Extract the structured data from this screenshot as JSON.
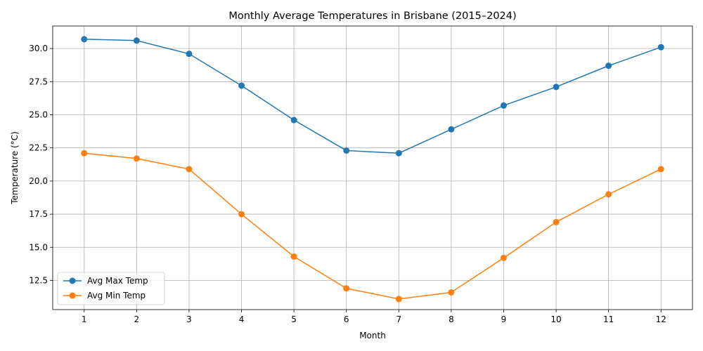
{
  "chart_data": {
    "type": "line",
    "title": "Monthly Average Temperatures in Brisbane (2015–2024)",
    "xlabel": "Month",
    "ylabel": "Temperature (°C)",
    "x": [
      1,
      2,
      3,
      4,
      5,
      6,
      7,
      8,
      9,
      10,
      11,
      12
    ],
    "xlim": [
      0.4,
      12.6
    ],
    "ylim": [
      10.3,
      31.7
    ],
    "yticks": [
      12.5,
      15.0,
      17.5,
      20.0,
      22.5,
      25.0,
      27.5,
      30.0
    ],
    "ytick_labels": [
      "12.5",
      "15.0",
      "17.5",
      "20.0",
      "22.5",
      "25.0",
      "27.5",
      "30.0"
    ],
    "xtick_labels": [
      "1",
      "2",
      "3",
      "4",
      "5",
      "6",
      "7",
      "8",
      "9",
      "10",
      "11",
      "12"
    ],
    "grid": true,
    "legend_position": "lower-left",
    "series": [
      {
        "name": "Avg Max Temp",
        "color": "#1f77b4",
        "values": [
          30.7,
          30.6,
          29.6,
          27.2,
          24.6,
          22.3,
          22.1,
          23.9,
          25.7,
          27.1,
          28.7,
          30.1
        ]
      },
      {
        "name": "Avg Min Temp",
        "color": "#ff7f0e",
        "values": [
          22.1,
          21.7,
          20.9,
          17.5,
          14.3,
          11.9,
          11.1,
          11.6,
          14.2,
          16.9,
          19.0,
          20.9
        ]
      }
    ]
  }
}
